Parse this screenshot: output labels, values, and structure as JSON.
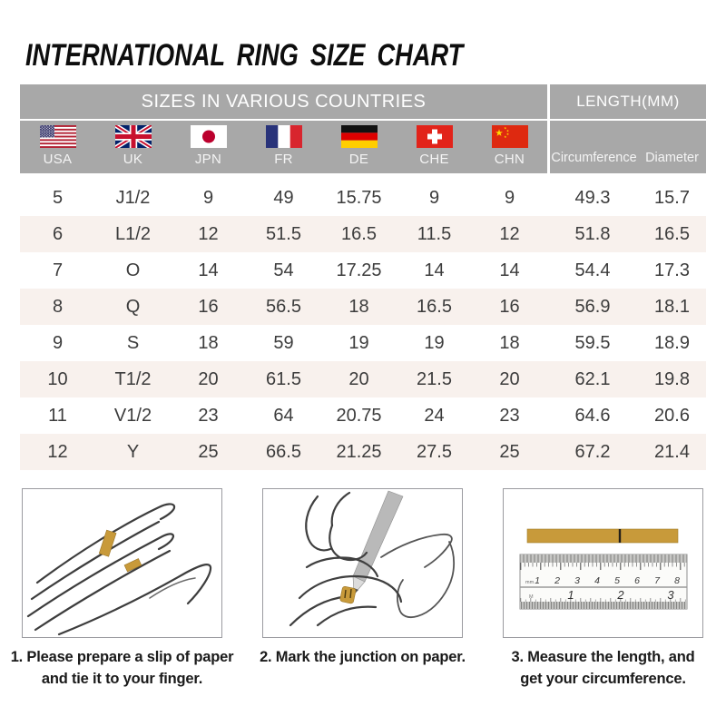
{
  "title": "INTERNATIONAL RING SIZE CHART",
  "colors": {
    "header_bg": "#a8a8a8",
    "header_text": "#ffffff",
    "row_alt_bg": "#f8f1ed",
    "body_text": "#3c3c3c",
    "paper_gold": "#c89a3a"
  },
  "chart_data": {
    "type": "table",
    "title": "INTERNATIONAL RING SIZE CHART",
    "group_headers": {
      "left": "SIZES IN VARIOUS COUNTRIES",
      "right": "LENGTH(MM)"
    },
    "columns": [
      "USA",
      "UK",
      "JPN",
      "FR",
      "DE",
      "CHE",
      "CHN",
      "Circumference",
      "Diameter"
    ],
    "flag_icons": [
      "usa-flag",
      "uk-flag",
      "japan-flag",
      "france-flag",
      "germany-flag",
      "switzerland-flag",
      "china-flag"
    ],
    "rows": [
      [
        "5",
        "J1/2",
        "9",
        "49",
        "15.75",
        "9",
        "9",
        "49.3",
        "15.7"
      ],
      [
        "6",
        "L1/2",
        "12",
        "51.5",
        "16.5",
        "11.5",
        "12",
        "51.8",
        "16.5"
      ],
      [
        "7",
        "O",
        "14",
        "54",
        "17.25",
        "14",
        "14",
        "54.4",
        "17.3"
      ],
      [
        "8",
        "Q",
        "16",
        "56.5",
        "18",
        "16.5",
        "16",
        "56.9",
        "18.1"
      ],
      [
        "9",
        "S",
        "18",
        "59",
        "19",
        "19",
        "18",
        "59.5",
        "18.9"
      ],
      [
        "10",
        "T1/2",
        "20",
        "61.5",
        "20",
        "21.5",
        "20",
        "62.1",
        "19.8"
      ],
      [
        "11",
        "V1/2",
        "23",
        "64",
        "20.75",
        "24",
        "23",
        "64.6",
        "20.6"
      ],
      [
        "12",
        "Y",
        "25",
        "66.5",
        "21.25",
        "27.5",
        "25",
        "67.2",
        "21.4"
      ]
    ]
  },
  "steps": [
    {
      "line1": "1. Please prepare a slip of paper",
      "line2": "and tie it to your finger."
    },
    {
      "line1": "2. Mark the junction on paper.",
      "line2": ""
    },
    {
      "line1": "3. Measure the length, and",
      "line2": "get your circumference.",
      "ruler_top": [
        "1",
        "2",
        "3",
        "4",
        "5",
        "6",
        "7",
        "8"
      ],
      "ruler_bottom": [
        "1",
        "2",
        "3"
      ],
      "ruler_unit": "mm"
    }
  ]
}
